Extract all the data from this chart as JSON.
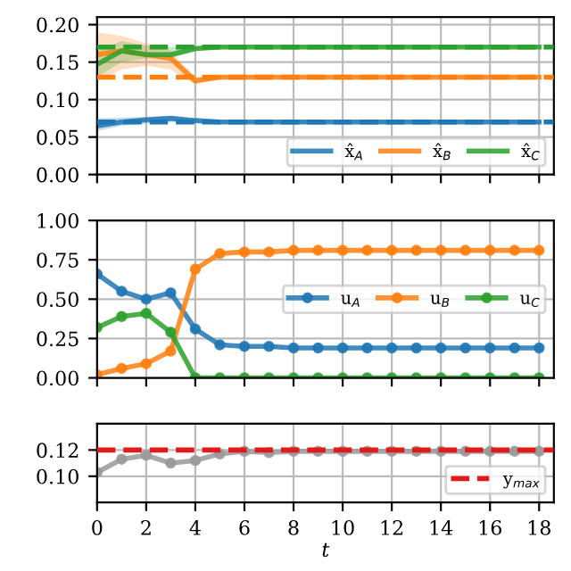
{
  "chart_data": [
    {
      "type": "line",
      "x": [
        0,
        1,
        2,
        3,
        4,
        5,
        6,
        7,
        8,
        9,
        10,
        11,
        12,
        13,
        14,
        15,
        16,
        17,
        18
      ],
      "xlim": [
        0,
        18.6
      ],
      "xticks": [
        0,
        2,
        4,
        6,
        8,
        10,
        12,
        14,
        16,
        18
      ],
      "ylim": [
        0,
        0.21
      ],
      "yticks": [
        {
          "value": 0,
          "label": "0.00"
        },
        {
          "value": 0.05,
          "label": "0.05"
        },
        {
          "value": 0.1,
          "label": "0.10"
        },
        {
          "value": 0.15,
          "label": "0.15"
        },
        {
          "value": 0.2,
          "label": "0.20"
        }
      ],
      "tick_labels": "y",
      "grid": true,
      "legend": "bottom right",
      "marker": "none",
      "series": [
        {
          "name": "x̂$_{A}$",
          "color": "#1f77b4",
          "values": [
            0.065,
            0.07,
            0.073,
            0.075,
            0.072,
            0.07,
            0.07,
            0.07,
            0.07,
            0.07,
            0.07,
            0.07,
            0.07,
            0.07,
            0.07,
            0.07,
            0.07,
            0.07,
            0.07
          ],
          "lower": [
            0.058,
            0.065,
            0.068,
            0.07,
            0.069,
            0.068,
            0.068,
            0.068,
            0.068,
            0.068,
            0.068,
            0.068,
            0.068,
            0.068,
            0.068,
            0.068,
            0.068,
            0.068,
            0.068
          ],
          "upper": [
            0.075,
            0.076,
            0.077,
            0.078,
            0.075,
            0.072,
            0.072,
            0.072,
            0.072,
            0.072,
            0.072,
            0.072,
            0.072,
            0.072,
            0.072,
            0.072,
            0.072,
            0.072,
            0.072
          ]
        },
        {
          "name": "x̂$_{B}$",
          "color": "#ff7f0e",
          "values": [
            0.16,
            0.165,
            0.16,
            0.155,
            0.125,
            0.13,
            0.13,
            0.13,
            0.13,
            0.13,
            0.13,
            0.13,
            0.13,
            0.13,
            0.13,
            0.13,
            0.13,
            0.13,
            0.13
          ],
          "lower": [
            0.125,
            0.14,
            0.145,
            0.14,
            0.12,
            0.128,
            0.128,
            0.128,
            0.128,
            0.128,
            0.128,
            0.128,
            0.128,
            0.128,
            0.128,
            0.128,
            0.128,
            0.128,
            0.128
          ],
          "upper": [
            0.19,
            0.185,
            0.175,
            0.165,
            0.13,
            0.132,
            0.132,
            0.132,
            0.132,
            0.132,
            0.132,
            0.132,
            0.132,
            0.132,
            0.132,
            0.132,
            0.132,
            0.132,
            0.132
          ]
        },
        {
          "name": "x̂$_{C}$",
          "color": "#2ca02c",
          "values": [
            0.147,
            0.165,
            0.16,
            0.16,
            0.168,
            0.17,
            0.17,
            0.17,
            0.17,
            0.17,
            0.17,
            0.17,
            0.17,
            0.17,
            0.17,
            0.17,
            0.17,
            0.17,
            0.17
          ],
          "lower": [
            0.13,
            0.15,
            0.155,
            0.155,
            0.165,
            0.168,
            0.168,
            0.168,
            0.168,
            0.168,
            0.168,
            0.168,
            0.168,
            0.168,
            0.168,
            0.168,
            0.168,
            0.168,
            0.168
          ],
          "upper": [
            0.165,
            0.178,
            0.172,
            0.17,
            0.172,
            0.172,
            0.172,
            0.172,
            0.172,
            0.172,
            0.172,
            0.172,
            0.172,
            0.172,
            0.172,
            0.172,
            0.172,
            0.172,
            0.172
          ]
        }
      ],
      "ref_lines": [
        {
          "axis": "y",
          "value": 0.07,
          "color": "#1f77b4",
          "line_style": "dashed"
        },
        {
          "axis": "y",
          "value": 0.13,
          "color": "#ff7f0e",
          "line_style": "dashed"
        },
        {
          "axis": "y",
          "value": 0.17,
          "color": "#2ca02c",
          "line_style": "dashed"
        }
      ]
    },
    {
      "type": "line",
      "x": [
        0,
        1,
        2,
        3,
        4,
        5,
        6,
        7,
        8,
        9,
        10,
        11,
        12,
        13,
        14,
        15,
        16,
        17,
        18
      ],
      "xlim": [
        0,
        18.6
      ],
      "xticks": [
        0,
        2,
        4,
        6,
        8,
        10,
        12,
        14,
        16,
        18
      ],
      "ylim": [
        0,
        1
      ],
      "yticks": [
        {
          "value": 0,
          "label": "0.00"
        },
        {
          "value": 0.25,
          "label": "0.25"
        },
        {
          "value": 0.5,
          "label": "0.50"
        },
        {
          "value": 0.75,
          "label": "0.75"
        },
        {
          "value": 1,
          "label": "1.00"
        }
      ],
      "tick_labels": "y",
      "grid": true,
      "legend": "right",
      "marker": "circle",
      "series": [
        {
          "name": "u$_{A}$",
          "color": "#1f77b4",
          "values": [
            0.66,
            0.55,
            0.5,
            0.54,
            0.31,
            0.21,
            0.2,
            0.2,
            0.19,
            0.19,
            0.19,
            0.19,
            0.19,
            0.19,
            0.19,
            0.19,
            0.19,
            0.19,
            0.19
          ]
        },
        {
          "name": "u$_{B}$",
          "color": "#ff7f0e",
          "values": [
            0.02,
            0.06,
            0.09,
            0.17,
            0.69,
            0.79,
            0.8,
            0.8,
            0.81,
            0.81,
            0.81,
            0.81,
            0.81,
            0.81,
            0.81,
            0.81,
            0.81,
            0.81,
            0.81
          ]
        },
        {
          "name": "u$_{C}$",
          "color": "#2ca02c",
          "values": [
            0.32,
            0.39,
            0.41,
            0.29,
            0,
            0,
            0,
            0,
            0,
            0,
            0,
            0,
            0,
            0,
            0,
            0,
            0,
            0,
            0
          ]
        }
      ]
    },
    {
      "type": "line",
      "x": [
        0,
        1,
        2,
        3,
        4,
        5,
        6,
        7,
        8,
        9,
        10,
        11,
        12,
        13,
        14,
        15,
        16,
        17,
        18
      ],
      "xlim": [
        0,
        18.6
      ],
      "xticks": [
        0,
        2,
        4,
        6,
        8,
        10,
        12,
        14,
        16,
        18
      ],
      "ylim": [
        0.08,
        0.14
      ],
      "yticks": [
        {
          "value": 0.1,
          "label": "0.10"
        },
        {
          "value": 0.12,
          "label": "0.12"
        }
      ],
      "xlabel": "t",
      "grid": true,
      "legend": "bottom right",
      "marker": "circle",
      "series": [
        {
          "color": "#999999",
          "values": [
            0.103,
            0.113,
            0.116,
            0.11,
            0.112,
            0.117,
            0.119,
            0.118,
            0.119,
            0.119,
            0.119,
            0.119,
            0.119,
            0.119,
            0.119,
            0.119,
            0.119,
            0.119,
            0.119
          ]
        }
      ],
      "ref_lines": [
        {
          "axis": "y",
          "value": 0.12,
          "label": "y$_{max}$",
          "color": "#e31a1c",
          "line_style": "dashed"
        }
      ]
    }
  ]
}
